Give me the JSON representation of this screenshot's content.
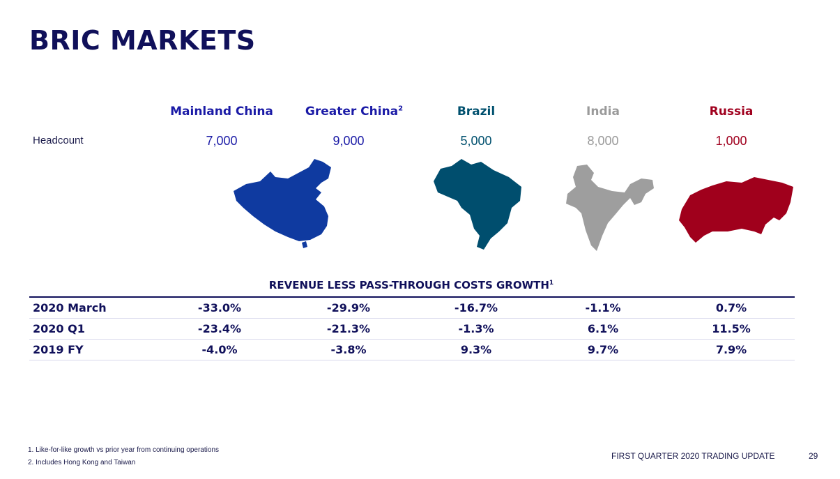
{
  "title": "BRIC MARKETS",
  "columns": [
    {
      "name": "Mainland China",
      "sup": "",
      "headcount": "7,000",
      "color": "#1a1aa6"
    },
    {
      "name": "Greater China",
      "sup": "2",
      "headcount": "9,000",
      "color": "#1a1aa6"
    },
    {
      "name": "Brazil",
      "sup": "",
      "headcount": "5,000",
      "color": "#00506e"
    },
    {
      "name": "India",
      "sup": "",
      "headcount": "8,000",
      "color": "#9a9a9a"
    },
    {
      "name": "Russia",
      "sup": "",
      "headcount": "1,000",
      "color": "#a0001e"
    }
  ],
  "headcount_label": "Headcount",
  "table": {
    "title": "REVENUE LESS PASS-THROUGH COSTS GROWTH",
    "title_sup": "1",
    "rows": [
      {
        "label": "2020 March",
        "values": [
          "-33.0%",
          "-29.9%",
          "-16.7%",
          "-1.1%",
          "0.7%"
        ]
      },
      {
        "label": "2020 Q1",
        "values": [
          "-23.4%",
          "-21.3%",
          "-1.3%",
          "6.1%",
          "11.5%"
        ]
      },
      {
        "label": "2019 FY",
        "values": [
          "-4.0%",
          "-3.8%",
          "9.3%",
          "9.7%",
          "7.9%"
        ]
      }
    ]
  },
  "footnotes": [
    "1.   Like-for-like growth vs prior year from continuing operations",
    "2.   Includes Hong Kong and Taiwan"
  ],
  "footer": {
    "label": "FIRST QUARTER 2020 TRADING UPDATE",
    "page": "29"
  },
  "map_colors": {
    "china": "#0f3aa0",
    "brazil": "#004e6e",
    "india": "#9e9e9e",
    "russia": "#a0001c"
  }
}
